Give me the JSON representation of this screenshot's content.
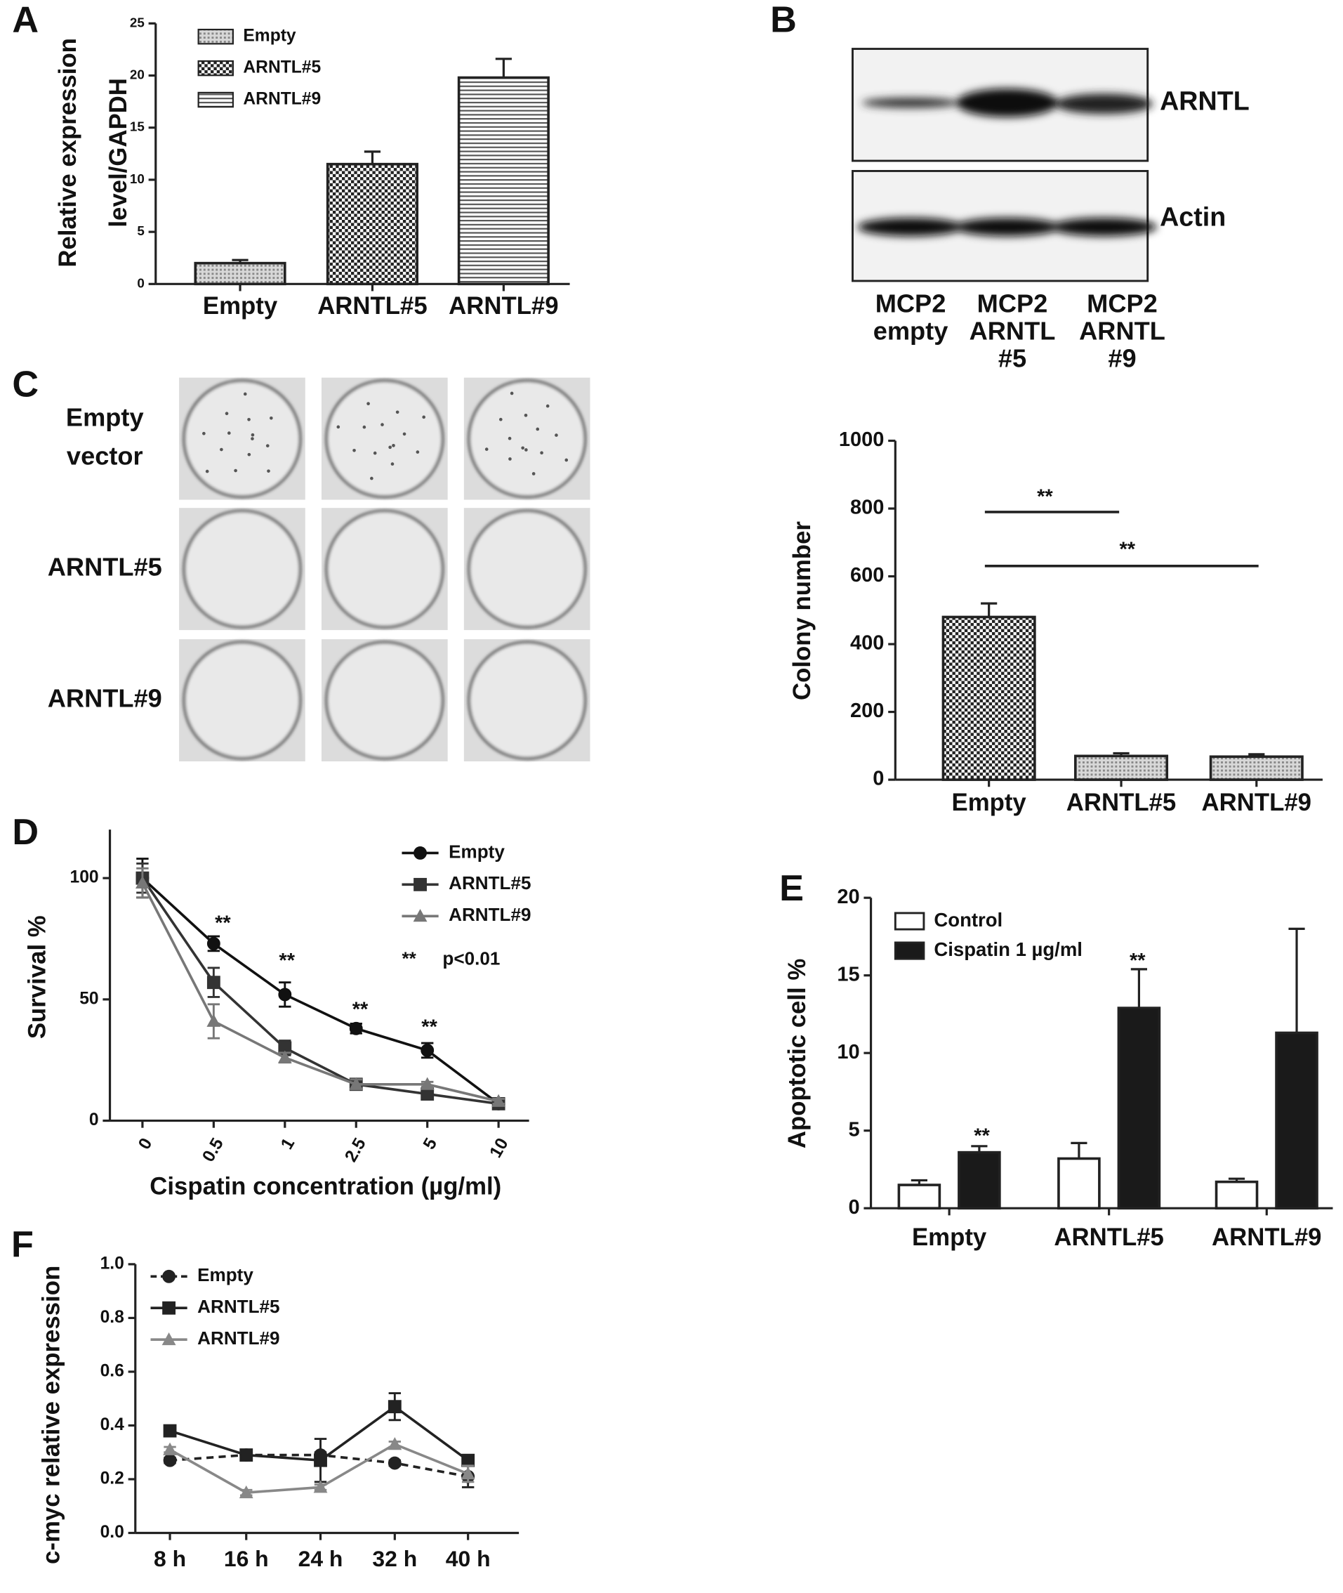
{
  "chart_data": [
    {
      "type": "bar",
      "panel": "A",
      "y_label": [
        "Relative expression",
        "level/GAPDH"
      ],
      "categories": [
        "Empty",
        "ARNTL#5",
        "ARNTL#9"
      ],
      "values": [
        2,
        11.5,
        19.8
      ],
      "errors": [
        0.3,
        1.2,
        1.8
      ],
      "fills": [
        "dots",
        "checker",
        "hlines"
      ],
      "ylim": [
        0,
        25
      ],
      "yticks": [
        0,
        5,
        10,
        15,
        20,
        25
      ],
      "legend": true
    },
    {
      "type": "bar",
      "y_label": "Colony number",
      "categories": [
        "Empty",
        "ARNTL#5",
        "ARNTL#9"
      ],
      "values": [
        480,
        70,
        68
      ],
      "errors": [
        40,
        8,
        7
      ],
      "fills": [
        "checker",
        "dots",
        "dots"
      ],
      "ylim": [
        0,
        1000
      ],
      "yticks": [
        0,
        200,
        400,
        600,
        800,
        1000
      ],
      "annotations": [
        "**",
        "**"
      ]
    },
    {
      "type": "line",
      "panel": "D",
      "y_label": "Survival %",
      "x_label": "Cispatin concentration (µg/ml)",
      "categories": [
        "0",
        "0.5",
        "1",
        "2.5",
        "5",
        "10"
      ],
      "series": [
        {
          "name": "Empty",
          "color": "#111111",
          "marker": "circle",
          "values": [
            100,
            73,
            52,
            38,
            29,
            7
          ],
          "errors": [
            8,
            3,
            5,
            2,
            3,
            1
          ]
        },
        {
          "name": "ARNTL#5",
          "color": "#333333",
          "marker": "square",
          "values": [
            100,
            57,
            30,
            15,
            11,
            7
          ],
          "errors": [
            6,
            6,
            3,
            2,
            2,
            1
          ]
        },
        {
          "name": "ARNTL#9",
          "color": "#777777",
          "marker": "triangle",
          "values": [
            98,
            41,
            26,
            15,
            15,
            8
          ],
          "errors": [
            6,
            7,
            2,
            2,
            1,
            1
          ]
        }
      ],
      "ylim": [
        0,
        120
      ],
      "yticks": [
        0,
        50,
        100
      ],
      "annotations": [
        "**",
        "**",
        "**",
        "**"
      ],
      "note": [
        "**",
        "p<0.01"
      ]
    },
    {
      "type": "bar",
      "panel": "E",
      "y_label": "Apoptotic cell %",
      "categories": [
        "Empty",
        "ARNTL#5",
        "ARNTL#9"
      ],
      "series": [
        {
          "name": "Control",
          "color": "#ffffff",
          "values": [
            1.5,
            3.2,
            1.7
          ],
          "errors": [
            0.3,
            1.0,
            0.2
          ]
        },
        {
          "name": "Cispatin 1 µg/ml",
          "color": "#1a1a1a",
          "values": [
            3.6,
            12.9,
            11.3
          ],
          "errors": [
            0.4,
            2.5,
            6.7
          ]
        }
      ],
      "ylim": [
        0,
        20
      ],
      "yticks": [
        0,
        5,
        10,
        15,
        20
      ],
      "annotations": [
        "**",
        "**"
      ]
    },
    {
      "type": "line",
      "panel": "F",
      "y_label": "c-myc relative expression",
      "categories": [
        "8 h",
        "16 h",
        "24 h",
        "32 h",
        "40 h"
      ],
      "series": [
        {
          "name": "Empty",
          "color": "#222222",
          "marker": "circle",
          "dashed": true,
          "values": [
            0.27,
            0.29,
            0.29,
            0.26,
            0.21
          ],
          "errors": [
            0.01,
            0.01,
            0.01,
            0.01,
            0.04
          ]
        },
        {
          "name": "ARNTL#5",
          "color": "#222222",
          "marker": "square",
          "values": [
            0.38,
            0.29,
            0.27,
            0.47,
            0.27
          ],
          "errors": [
            0.01,
            0.02,
            0.08,
            0.05,
            0.01
          ]
        },
        {
          "name": "ARNTL#9",
          "color": "#888888",
          "marker": "triangle",
          "values": [
            0.31,
            0.15,
            0.17,
            0.33,
            0.22
          ],
          "errors": [
            0.01,
            0.01,
            0.01,
            0.01,
            0.03
          ]
        }
      ],
      "ylim": [
        0,
        1
      ],
      "yticks": [
        {
          "value": 0,
          "label": "0.0"
        },
        0.2,
        0.4,
        0.6,
        0.8,
        {
          "value": 1,
          "label": "1.0"
        }
      ]
    }
  ],
  "blot": {
    "panel": "B",
    "proteins": [
      "ARNTL",
      "Actin"
    ],
    "lanes": [
      [
        "MCP2",
        "empty"
      ],
      [
        "MCP2",
        "ARNTL",
        "#5"
      ],
      [
        "MCP2",
        "ARNTL",
        "#9"
      ]
    ]
  },
  "colony_assay": {
    "panel": "C",
    "rows": [
      [
        "Empty",
        "vector"
      ],
      [
        "ARNTL#5"
      ],
      [
        "ARNTL#9"
      ]
    ]
  }
}
